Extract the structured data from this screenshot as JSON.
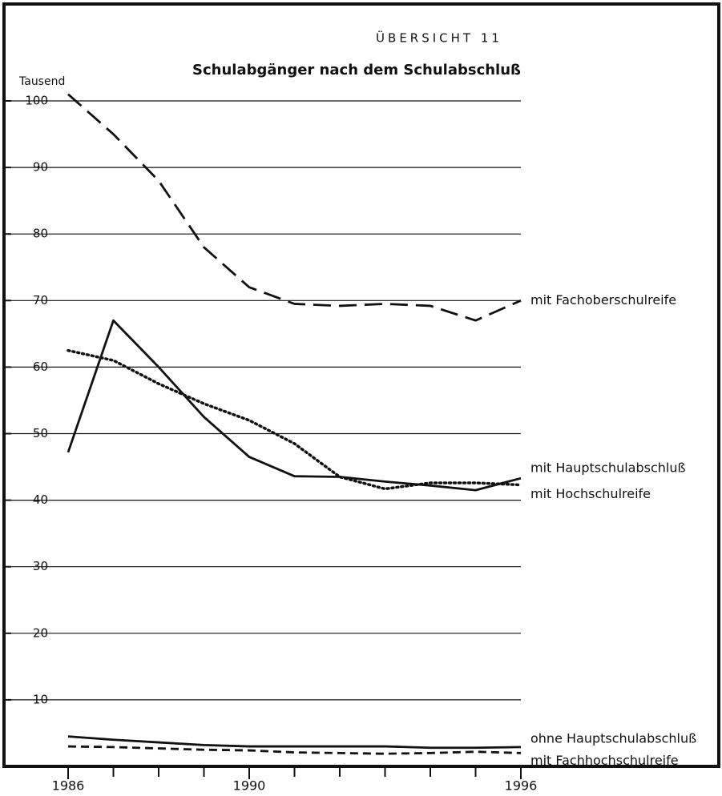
{
  "chart_data": {
    "type": "line",
    "title": "Schulabgänger nach dem Schulabschluß",
    "subtitle": "ÜBERSICHT 11",
    "y_label": "Tausend",
    "x": [
      1986,
      1987,
      1988,
      1989,
      1990,
      1991,
      1992,
      1993,
      1994,
      1995,
      1996
    ],
    "xlim": [
      1986,
      1996
    ],
    "xticks": [
      1986,
      1990,
      1996
    ],
    "xminor_ticks": [
      1986,
      1987,
      1988,
      1989,
      1990,
      1991,
      1992,
      1993,
      1994,
      1995,
      1996
    ],
    "ylim": [
      0,
      100
    ],
    "yticks": [
      10,
      20,
      30,
      40,
      50,
      60,
      70,
      80,
      90,
      100
    ],
    "grid": true,
    "series": [
      {
        "name": "mit Fachoberschulreife",
        "color": "#111111",
        "style": "long-dashed",
        "values": [
          101,
          95,
          88,
          78,
          72,
          69.5,
          69.2,
          69.5,
          69.2,
          67,
          70
        ]
      },
      {
        "name": "mit Hauptschulabschluß",
        "color": "#111111",
        "style": "solid",
        "values": [
          47.2,
          67,
          60,
          52.5,
          46.5,
          43.6,
          43.5,
          42.8,
          42.2,
          41.5,
          43.3
        ]
      },
      {
        "name": "mit Hochschulreife",
        "color": "#111111",
        "style": "dotted",
        "values": [
          62.5,
          61,
          57.5,
          54.5,
          52,
          48.5,
          43.5,
          41.7,
          42.6,
          42.6,
          42.3
        ]
      },
      {
        "name": "ohne Hauptschulabschluß",
        "color": "#111111",
        "style": "solid",
        "values": [
          4.5,
          4,
          3.6,
          3.2,
          3,
          3,
          3,
          3,
          2.8,
          2.8,
          2.9
        ]
      },
      {
        "name": "mit Fachhochschulreife",
        "color": "#111111",
        "style": "dashed",
        "values": [
          3,
          2.9,
          2.7,
          2.5,
          2.4,
          2.1,
          2,
          1.9,
          2,
          2.2,
          2
        ]
      }
    ]
  }
}
